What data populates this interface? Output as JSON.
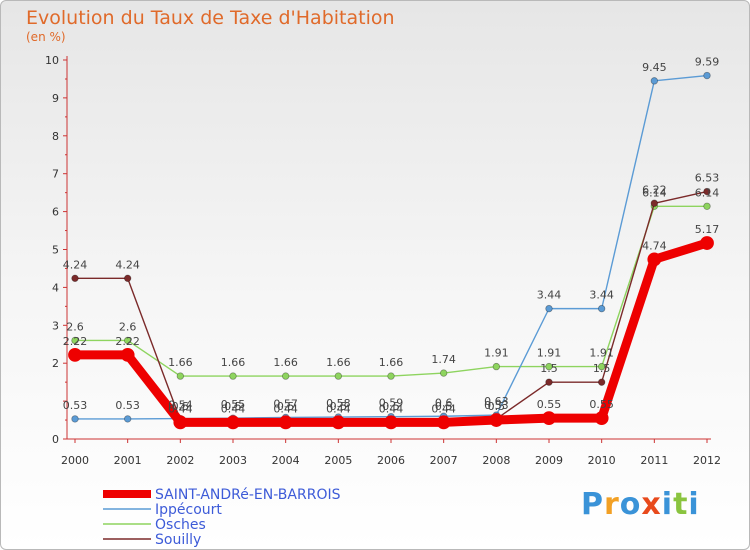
{
  "title": "Evolution du Taux de Taxe d'Habitation",
  "unit_label": "(en %)",
  "logo": {
    "text": "Proxiti",
    "colors": [
      "#3a93d8",
      "#f2a024",
      "#3a93d8",
      "#e84a1c",
      "#3a93d8",
      "#8ac43f",
      "#3a93d8"
    ]
  },
  "chart_data": {
    "type": "line",
    "title": "Evolution du Taux de Taxe d'Habitation",
    "ylabel": "(en %)",
    "xlabel": "",
    "ylim": [
      0,
      10
    ],
    "yticks": [
      0,
      1,
      2,
      3,
      4,
      5,
      6,
      7,
      8,
      9,
      10
    ],
    "ytick_labels": [
      "0",
      "",
      "2",
      "3",
      "4",
      "5",
      "6",
      "7",
      "8",
      "9",
      "10"
    ],
    "categories": [
      "2000",
      "2001",
      "2002",
      "2003",
      "2004",
      "2005",
      "2006",
      "2007",
      "2008",
      "2009",
      "2010",
      "2011",
      "2012"
    ],
    "legend_position": "bottom-left",
    "grid": false,
    "series": [
      {
        "name": "Ippécourt",
        "color": "#5b9bd5",
        "values": [
          0.53,
          0.53,
          0.54,
          0.55,
          0.57,
          0.58,
          0.59,
          0.6,
          0.63,
          3.44,
          3.44,
          9.45,
          9.59
        ],
        "labels": [
          "0.53",
          "0.53",
          "0.54",
          "0.55",
          "0.57",
          "0.58",
          "0.59",
          "0.6",
          "0.63",
          "3.44",
          "3.44",
          "9.45",
          "9.59"
        ]
      },
      {
        "name": "Osches",
        "color": "#8ed45f",
        "values": [
          2.6,
          2.6,
          1.66,
          1.66,
          1.66,
          1.66,
          1.66,
          1.74,
          1.91,
          1.91,
          1.91,
          6.14,
          6.14
        ],
        "labels": [
          "2.6",
          "2.6",
          "1.66",
          "1.66",
          "1.66",
          "1.66",
          "1.66",
          "1.74",
          "1.91",
          "1.91",
          "1.91",
          "6.14",
          "6.14"
        ]
      },
      {
        "name": "Souilly",
        "color": "#7b2a2a",
        "values": [
          4.24,
          4.24,
          0.5,
          0.5,
          0.5,
          0.5,
          0.5,
          0.5,
          0.53,
          1.5,
          1.5,
          6.22,
          6.53
        ],
        "labels": [
          "4.24",
          "4.24",
          "0.5",
          "0.5",
          "0.5",
          "0.5",
          "0.5",
          "0.5",
          "0.53",
          "1.5",
          "1.5",
          "6.22",
          "6.53"
        ]
      },
      {
        "name": "SAINT-ANDRé-EN-BARROIS",
        "color": "#ee0000",
        "values": [
          2.22,
          2.22,
          0.44,
          0.44,
          0.44,
          0.44,
          0.44,
          0.44,
          0.5,
          0.55,
          0.55,
          4.74,
          5.17
        ],
        "labels": [
          "2.22",
          "2.22",
          "0.44",
          "0.44",
          "0.44",
          "0.44",
          "0.44",
          "0.44",
          "0.5",
          "0.55",
          "0.55",
          "4.74",
          "5.17"
        ]
      }
    ],
    "legend_order": [
      "SAINT-ANDRé-EN-BARROIS",
      "Ippécourt",
      "Osches",
      "Souilly"
    ]
  }
}
